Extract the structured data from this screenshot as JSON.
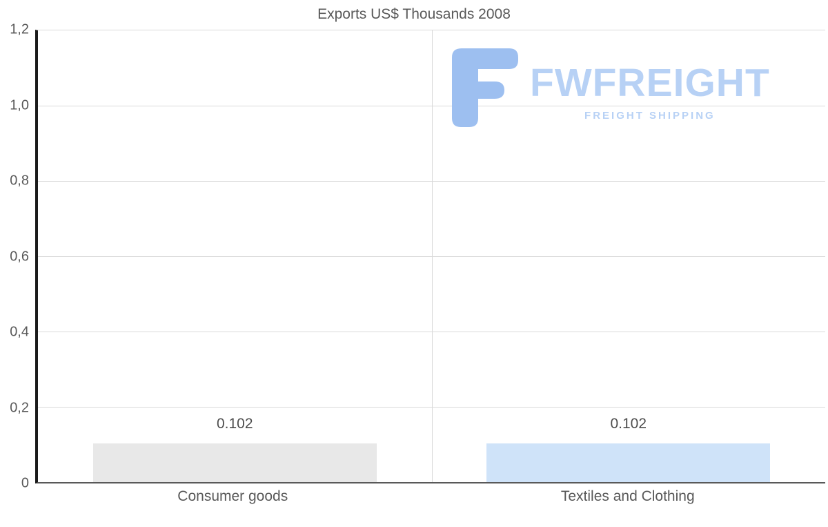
{
  "watermark": {
    "brand": "FWFREIGHT",
    "tagline": "FREIGHT SHIPPING"
  },
  "chart_data": {
    "type": "bar",
    "title": "Exports US$ Thousands 2008",
    "categories": [
      "Consumer goods",
      "Textiles and Clothing"
    ],
    "values": [
      0.102,
      0.102
    ],
    "value_labels": [
      "0.102",
      "0.102"
    ],
    "bar_colors": [
      "#e8e8e8",
      "#cfe3f9"
    ],
    "ylim": [
      0,
      1.2
    ],
    "yticks_top_to_bottom": [
      "1,2",
      "1,0",
      "0,8",
      "0,6",
      "0,4",
      "0,2",
      "0"
    ],
    "grid": true,
    "legend": false,
    "xlabel": "",
    "ylabel": ""
  },
  "colors": {
    "text": "#595959",
    "gridline": "#d9d9d9",
    "axis": "#1a1a1a",
    "logo_icon": "#9dbff0",
    "logo_text": "#b7d1f5"
  }
}
